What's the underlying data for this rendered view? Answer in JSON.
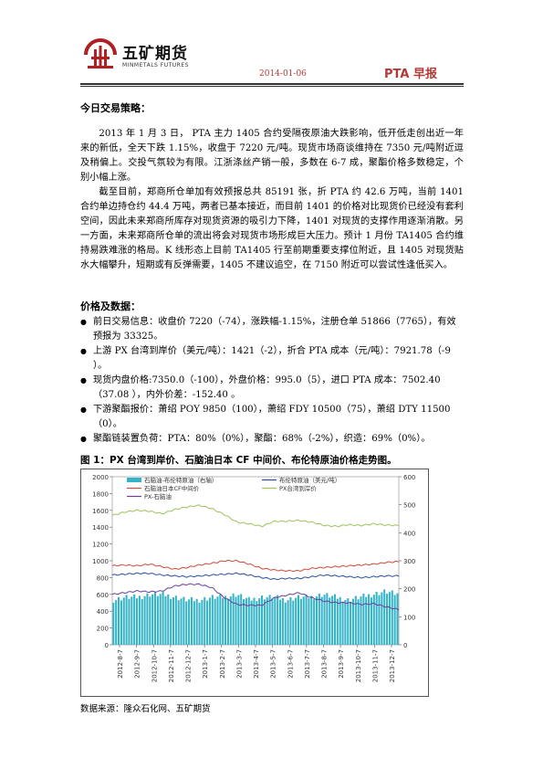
{
  "header": {
    "logo_cn": "五矿期货",
    "logo_en": "MINMETALS FUTURES",
    "date": "2014-01-06",
    "report_title": "PTA 早报"
  },
  "strategy": {
    "title": "今日交易策略：",
    "para1": "2013 年 1 月 3 日， PTA 主力 1405 合约受隔夜原油大跌影响，低开低走创出近一年来的新低，全天下跌 1.15%，收盘于 7220 元/吨。现货市场商谈维持在 7350 元/吨附近逗及稍偏上。交投气氛较为有限。江浙涤丝产销一般，多数在 6-7 成，聚酯价格多数稳定，个别小幅上涨。",
    "para2": "截至目前，郑商所仓单加有效预报总共 85191 张，折 PTA 约 42.6 万吨，当前 1401 合约单边持仓约 44.4 万吨，两者已基本接近，而目前 1401 的价格对比现货价已经没有套利空间，因此未来郑商所库存对现货资源的吸引力下降，1401 对现货的支撑作用逐渐消散。另一方面，未来郑商所仓单的流出将会对现货市场形成巨大压力。预计 1 月份 TA1405 合约维持易跌难涨的格局。K 线形态上目前 TA1405 行至前期重要支撑位附近，且 1405 对现货贴水大幅攀升，短期或有反弹需要，1405 不建议追空，在 7150 附近可以尝试性逢低买入。"
  },
  "prices": {
    "title": "价格及数据：",
    "items": [
      "前日交易信息：收盘价 7220（-74），涨跌幅-1.15%，注册仓单 51866（7765），有效预报为 33325。",
      "上游 PX 台湾到岸价（美元/吨）：1421（-2），折合 PTA 成本（元/吨）：7921.78（-9 ）。",
      "现货内盘价格:7350.0（-100），外盘价格：995.0（5），进口 PTA 成本：7502.40（37.08 ），内外价差：-152.40 。",
      "下游聚酯报价：萧绍 POY 9850（100），萧绍 FDY 10500（75），萧绍 DTY 11500（0）。",
      "聚酯链装置负荷：PTA：80%（0%），聚酯：68%（-2%），织造：69%（0%）。"
    ]
  },
  "figure": {
    "title": "图 1：PX 台湾到岸价、石脑油日本 CF 中间价、布伦特原油价格走势图。",
    "source": "数据来源：隆众石化网、五矿期货"
  },
  "chart_data": {
    "type": "line",
    "x_ticks": [
      "2012-8-7",
      "2012-9-7",
      "2012-10-7",
      "2012-11-7",
      "2012-12-7",
      "2013-1-7",
      "2013-2-7",
      "2013-3-7",
      "2013-4-7",
      "2013-5-7",
      "2013-6-7",
      "2013-7-7",
      "2013-8-7",
      "2013-9-7",
      "2013-10-7",
      "2013-11-7",
      "2013-12-7"
    ],
    "y_left": {
      "min": 0,
      "max": 2000,
      "ticks": [
        0,
        200,
        400,
        600,
        800,
        1000,
        1200,
        1400,
        1600,
        1800,
        2000
      ]
    },
    "y_right": {
      "min": 0,
      "max": 600,
      "ticks": [
        0,
        100,
        200,
        300,
        400,
        500,
        600
      ]
    },
    "legend": [
      "石脑油-布伦特原油（右轴）",
      "布伦特原油（美元/吨）",
      "石脑油日本CF中间价",
      "PX台湾到岸价",
      "PX-石脑油"
    ],
    "colors": {
      "spread_bars": "#35b4c8",
      "brent": "#2a4fa0",
      "naphtha": "#d24a3a",
      "px": "#9cc45a",
      "px_naphtha": "#6a3fa0"
    },
    "series": [
      {
        "name": "PX台湾到岸价",
        "axis": "left",
        "values": [
          1540,
          1580,
          1600,
          1590,
          1560,
          1610,
          1640,
          1660,
          1620,
          1550,
          1460,
          1440,
          1410,
          1470,
          1470,
          1480,
          1460,
          1420,
          1410,
          1430,
          1420,
          1440,
          1425,
          1420
        ]
      },
      {
        "name": "石脑油日本CF中间价",
        "axis": "left",
        "values": [
          940,
          950,
          940,
          960,
          930,
          900,
          920,
          950,
          970,
          1000,
          1000,
          960,
          910,
          890,
          880,
          880,
          910,
          920,
          930,
          940,
          950,
          960,
          980,
          990
        ]
      },
      {
        "name": "布伦特原油（美元/吨）",
        "axis": "left",
        "values": [
          830,
          840,
          850,
          850,
          830,
          820,
          810,
          820,
          830,
          840,
          850,
          830,
          800,
          780,
          790,
          790,
          810,
          830,
          820,
          810,
          800,
          810,
          820,
          820
        ]
      },
      {
        "name": "PX-石脑油",
        "axis": "left",
        "values": [
          600,
          620,
          640,
          630,
          640,
          700,
          720,
          720,
          680,
          560,
          480,
          470,
          470,
          560,
          590,
          620,
          560,
          520,
          500,
          500,
          480,
          490,
          450,
          420
        ]
      },
      {
        "name": "石脑油-布伦特原油（右轴）",
        "axis": "right",
        "type": "bar",
        "values": [
          160,
          170,
          170,
          180,
          180,
          170,
          160,
          160,
          170,
          170,
          180,
          160,
          170,
          170,
          160,
          170,
          170,
          180,
          170,
          160,
          170,
          180,
          190,
          180
        ]
      }
    ]
  }
}
